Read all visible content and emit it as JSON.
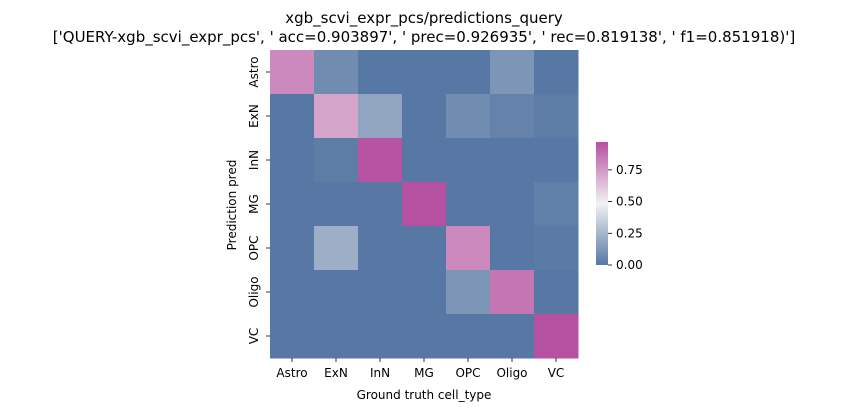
{
  "chart_data": {
    "type": "heatmap",
    "title": "xgb_scvi_expr_pcs/predictions_query",
    "subtitle": "['QUERY-xgb_scvi_expr_pcs', ' acc=0.903897', '  prec=0.926935', ' rec=0.819138', ' f1=0.851918)']",
    "xlabel": "Ground truth cell_type",
    "ylabel": "Prediction pred",
    "x_categories": [
      "Astro",
      "ExN",
      "InN",
      "MG",
      "OPC",
      "Oligo",
      "VC"
    ],
    "y_categories": [
      "Astro",
      "ExN",
      "InN",
      "MG",
      "OPC",
      "Oligo",
      "VC"
    ],
    "values": [
      [
        0.8,
        0.08,
        0.0,
        0.0,
        0.0,
        0.12,
        0.0
      ],
      [
        0.0,
        0.72,
        0.18,
        0.0,
        0.08,
        0.04,
        0.02
      ],
      [
        0.0,
        0.02,
        0.96,
        0.0,
        0.0,
        0.0,
        0.0
      ],
      [
        0.0,
        0.0,
        0.0,
        0.99,
        0.0,
        0.0,
        0.03
      ],
      [
        0.0,
        0.22,
        0.0,
        0.0,
        0.8,
        0.0,
        0.01
      ],
      [
        0.0,
        0.0,
        0.0,
        0.0,
        0.12,
        0.86,
        0.0
      ],
      [
        0.0,
        0.0,
        0.0,
        0.0,
        0.0,
        0.0,
        0.97
      ]
    ],
    "colorbar": {
      "range": [
        0,
        0.97
      ],
      "ticks": [
        0.0,
        0.25,
        0.5,
        0.75
      ],
      "tick_labels": [
        "0.00",
        "0.25",
        "0.50",
        "0.75"
      ],
      "colors": {
        "low": "#5778a4",
        "mid": "#f2f2f2",
        "high": "#b650a0"
      }
    },
    "grid": false,
    "legend": "colorbar-right"
  }
}
